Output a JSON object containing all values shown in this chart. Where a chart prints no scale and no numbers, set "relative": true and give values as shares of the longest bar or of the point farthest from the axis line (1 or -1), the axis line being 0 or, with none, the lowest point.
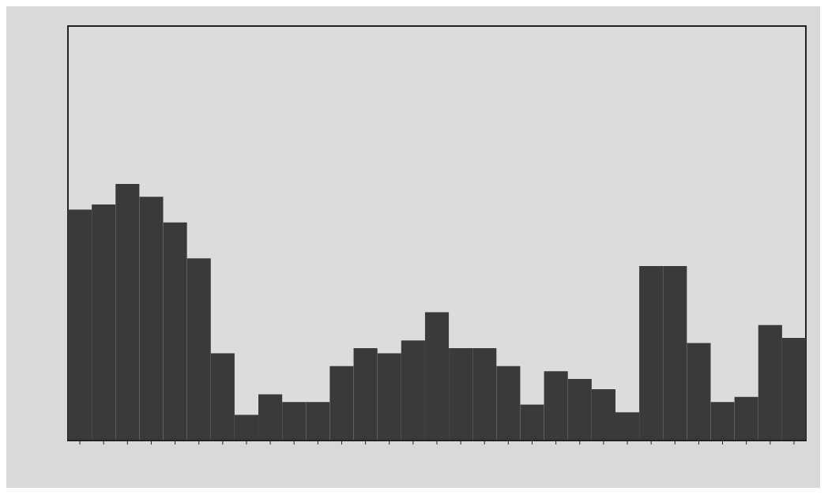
{
  "chart_data": {
    "type": "bar",
    "relative": true,
    "categories": [
      null,
      null,
      null,
      null,
      null,
      null,
      null,
      null,
      null,
      null,
      null,
      null,
      null,
      null,
      null,
      null,
      null,
      null,
      null,
      null,
      null,
      null,
      null,
      null,
      null,
      null,
      null,
      null,
      null,
      null,
      null
    ],
    "values": [
      0.9,
      0.92,
      1,
      0.95,
      0.85,
      0.71,
      0.34,
      0.1,
      0.18,
      0.15,
      0.15,
      0.29,
      0.36,
      0.34,
      0.39,
      0.5,
      0.36,
      0.36,
      0.29,
      0.14,
      0.27,
      0.24,
      0.2,
      0.11,
      0.68,
      0.68,
      0.38,
      0.15,
      0.17,
      0.45,
      0.4
    ],
    "color": "#3a3a3a"
  }
}
